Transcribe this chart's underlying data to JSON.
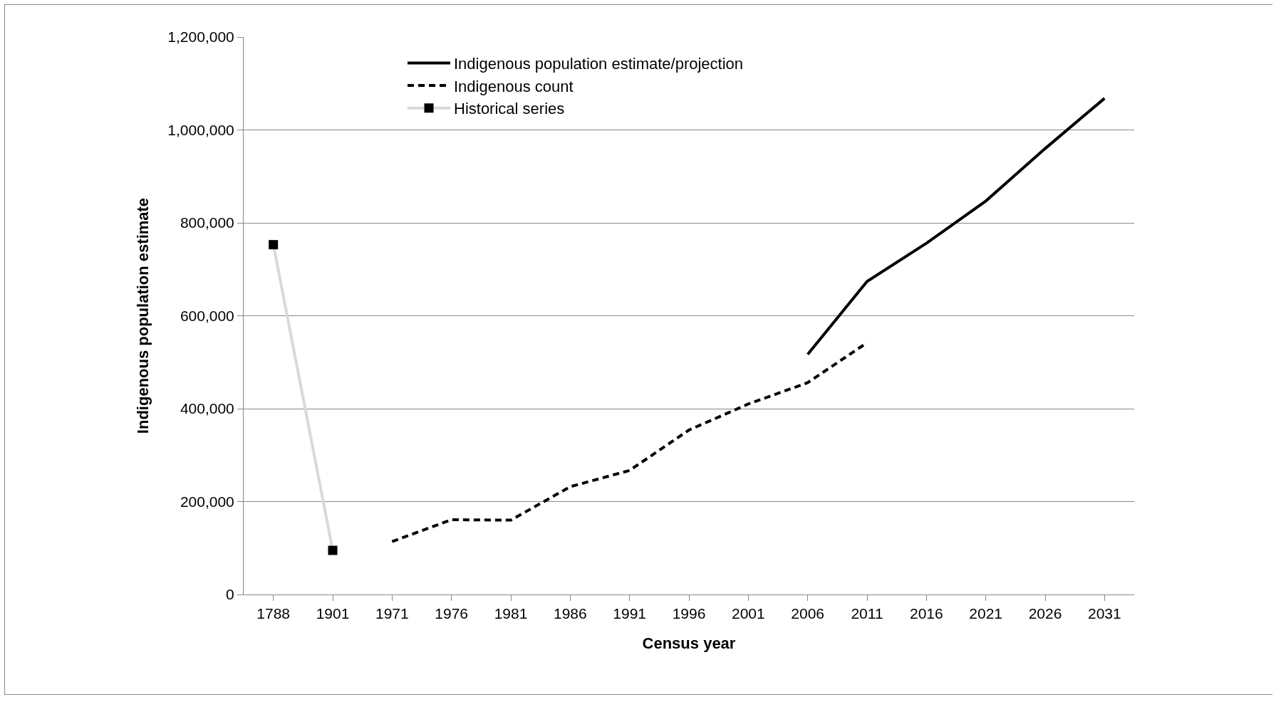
{
  "chart_data": {
    "type": "line",
    "xlabel": "Census year",
    "ylabel": "Indigenous population estimate",
    "categories": [
      "1788",
      "1901",
      "1971",
      "1976",
      "1981",
      "1986",
      "1991",
      "1996",
      "2001",
      "2006",
      "2011",
      "2016",
      "2021",
      "2026",
      "2031"
    ],
    "series": [
      {
        "name": "Indigenous population estimate/projection",
        "color": "#000000",
        "line_style": "solid",
        "marker": "none",
        "values": [
          null,
          null,
          null,
          null,
          null,
          null,
          null,
          null,
          null,
          517000,
          674000,
          756000,
          847000,
          960000,
          1068000
        ]
      },
      {
        "name": "Indigenous count",
        "color": "#000000",
        "line_style": "dashed",
        "marker": "none",
        "values": [
          null,
          null,
          114000,
          161000,
          160000,
          232000,
          267000,
          354000,
          410000,
          456000,
          542000,
          null,
          null,
          null,
          null
        ]
      },
      {
        "name": "Historical series",
        "color": "#d9d9d9",
        "line_style": "solid",
        "marker": "square",
        "values": [
          753000,
          95000,
          null,
          null,
          null,
          null,
          null,
          null,
          null,
          null,
          null,
          null,
          null,
          null,
          null
        ]
      }
    ],
    "ylim": [
      0,
      1200000
    ],
    "yticks": [
      0,
      {
        "value": 200000,
        "label": "200,000"
      },
      {
        "value": 400000,
        "label": "400,000"
      },
      {
        "value": 600000,
        "label": "600,000"
      },
      {
        "value": 800000,
        "label": "800,000"
      },
      {
        "value": 1000000,
        "label": "1,000,000"
      },
      {
        "value": 1200000,
        "label": "1,200,000"
      }
    ],
    "grid": "y",
    "legend": "top left"
  }
}
